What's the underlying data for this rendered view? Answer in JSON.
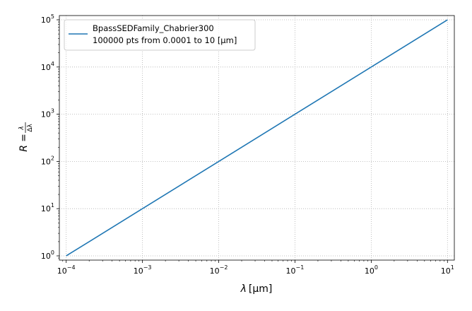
{
  "chart_data": {
    "type": "line",
    "xscale": "log",
    "yscale": "log",
    "xlim": [
      8.13e-05,
      12.3
    ],
    "ylim": [
      0.813,
      123000
    ],
    "x_ticks": [
      {
        "value": 0.0001,
        "base": "10",
        "exp": "−4"
      },
      {
        "value": 0.001,
        "base": "10",
        "exp": "−3"
      },
      {
        "value": 0.01,
        "base": "10",
        "exp": "−2"
      },
      {
        "value": 0.1,
        "base": "10",
        "exp": "−1"
      },
      {
        "value": 1,
        "base": "10",
        "exp": "0"
      },
      {
        "value": 10,
        "base": "10",
        "exp": "1"
      }
    ],
    "y_ticks": [
      {
        "value": 1,
        "base": "10",
        "exp": "0"
      },
      {
        "value": 10,
        "base": "10",
        "exp": "1"
      },
      {
        "value": 100,
        "base": "10",
        "exp": "2"
      },
      {
        "value": 1000,
        "base": "10",
        "exp": "3"
      },
      {
        "value": 10000,
        "base": "10",
        "exp": "4"
      },
      {
        "value": 100000,
        "base": "10",
        "exp": "5"
      }
    ],
    "xlabel": {
      "symbol": "λ",
      "unit": "[μm]"
    },
    "ylabel": {
      "symbol": "R",
      "equals": "=",
      "num": "λ",
      "den": "Δλ"
    },
    "grid": true,
    "legend_position": "top-left",
    "series": [
      {
        "name": "BpassSEDFamily_Chabrier300",
        "legend_sub": "100000 pts from 0.0001 to 10  [μm]",
        "color": "#1f77b4",
        "x": [
          0.0001,
          0.001,
          0.01,
          0.1,
          1,
          10
        ],
        "y": [
          1,
          10,
          100,
          1000,
          10000,
          100000
        ]
      }
    ]
  }
}
